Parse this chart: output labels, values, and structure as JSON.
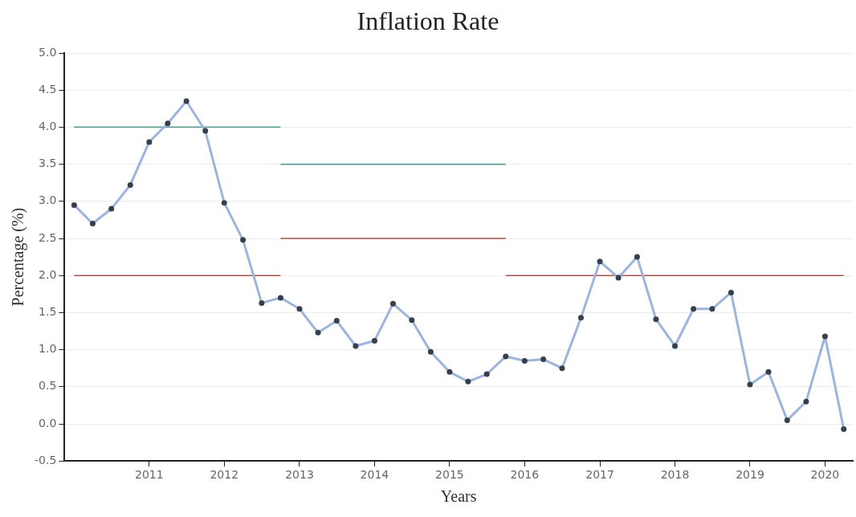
{
  "chart_data": {
    "type": "line",
    "title": "Inflation Rate",
    "xlabel": "Years",
    "ylabel": "Percentage (%)",
    "x": [
      "2010-01",
      "2010-04",
      "2010-07",
      "2010-10",
      "2011-01",
      "2011-04",
      "2011-07",
      "2011-10",
      "2012-01",
      "2012-04",
      "2012-07",
      "2012-10",
      "2013-01",
      "2013-04",
      "2013-07",
      "2013-10",
      "2014-01",
      "2014-04",
      "2014-07",
      "2014-10",
      "2015-01",
      "2015-04",
      "2015-07",
      "2015-10",
      "2016-01",
      "2016-04",
      "2016-07",
      "2016-10",
      "2017-01",
      "2017-04",
      "2017-07",
      "2017-10",
      "2018-01",
      "2018-04",
      "2018-07",
      "2018-10",
      "2019-01",
      "2019-04",
      "2019-07",
      "2019-10",
      "2020-01",
      "2020-04"
    ],
    "series": [
      {
        "color": "#9db4dc",
        "values": [
          2.95,
          2.7,
          2.9,
          3.22,
          3.8,
          4.05,
          4.35,
          3.95,
          2.98,
          2.48,
          1.63,
          1.7,
          1.55,
          1.23,
          1.39,
          1.05,
          1.12,
          1.62,
          1.4,
          0.97,
          0.7,
          0.57,
          0.67,
          0.91,
          0.85,
          0.87,
          0.75,
          1.43,
          2.19,
          1.97,
          2.25,
          1.41,
          1.05,
          1.55,
          1.55,
          1.77,
          0.53,
          0.7,
          0.05,
          0.3,
          1.18,
          -0.07
        ]
      },
      {
        "type": "line",
        "color": "#5e9e96",
        "marker": "none",
        "x": [
          "2010-01",
          "2012-10"
        ],
        "values": [
          4.0,
          4.0
        ]
      },
      {
        "type": "line",
        "color": "#5e9e96",
        "marker": "none",
        "x": [
          "2012-10",
          "2015-10"
        ],
        "values": [
          3.5,
          3.5
        ]
      },
      {
        "type": "line",
        "color": "#a9504c",
        "marker": "none",
        "x": [
          "2010-01",
          "2012-10"
        ],
        "values": [
          2.0,
          2.0
        ]
      },
      {
        "type": "line",
        "color": "#a9504c",
        "marker": "none",
        "x": [
          "2012-10",
          "2015-10"
        ],
        "values": [
          2.5,
          2.5
        ]
      },
      {
        "type": "line",
        "color": "#a9504c",
        "marker": "none",
        "x": [
          "2015-10",
          "2020-04"
        ],
        "values": [
          2.0,
          2.0
        ]
      }
    ],
    "marker": "circle",
    "xlim": [
      "2009-11-15",
      "2020-05-15"
    ],
    "xticks": [
      "2011",
      "2012",
      "2013",
      "2014",
      "2015",
      "2016",
      "2017",
      "2018",
      "2019",
      "2020"
    ],
    "ylim": [
      -0.5,
      5.0
    ],
    "yticks": [
      -0.5,
      {
        "value": 0,
        "label": "0.0"
      },
      0.5,
      {
        "value": 1,
        "label": "1.0"
      },
      1.5,
      {
        "value": 2,
        "label": "2.0"
      },
      2.5,
      {
        "value": 3,
        "label": "3.0"
      },
      3.5,
      {
        "value": 4,
        "label": "4.0"
      },
      4.5,
      {
        "value": 5,
        "label": "5.0"
      }
    ],
    "grid": "y",
    "legend": false
  }
}
